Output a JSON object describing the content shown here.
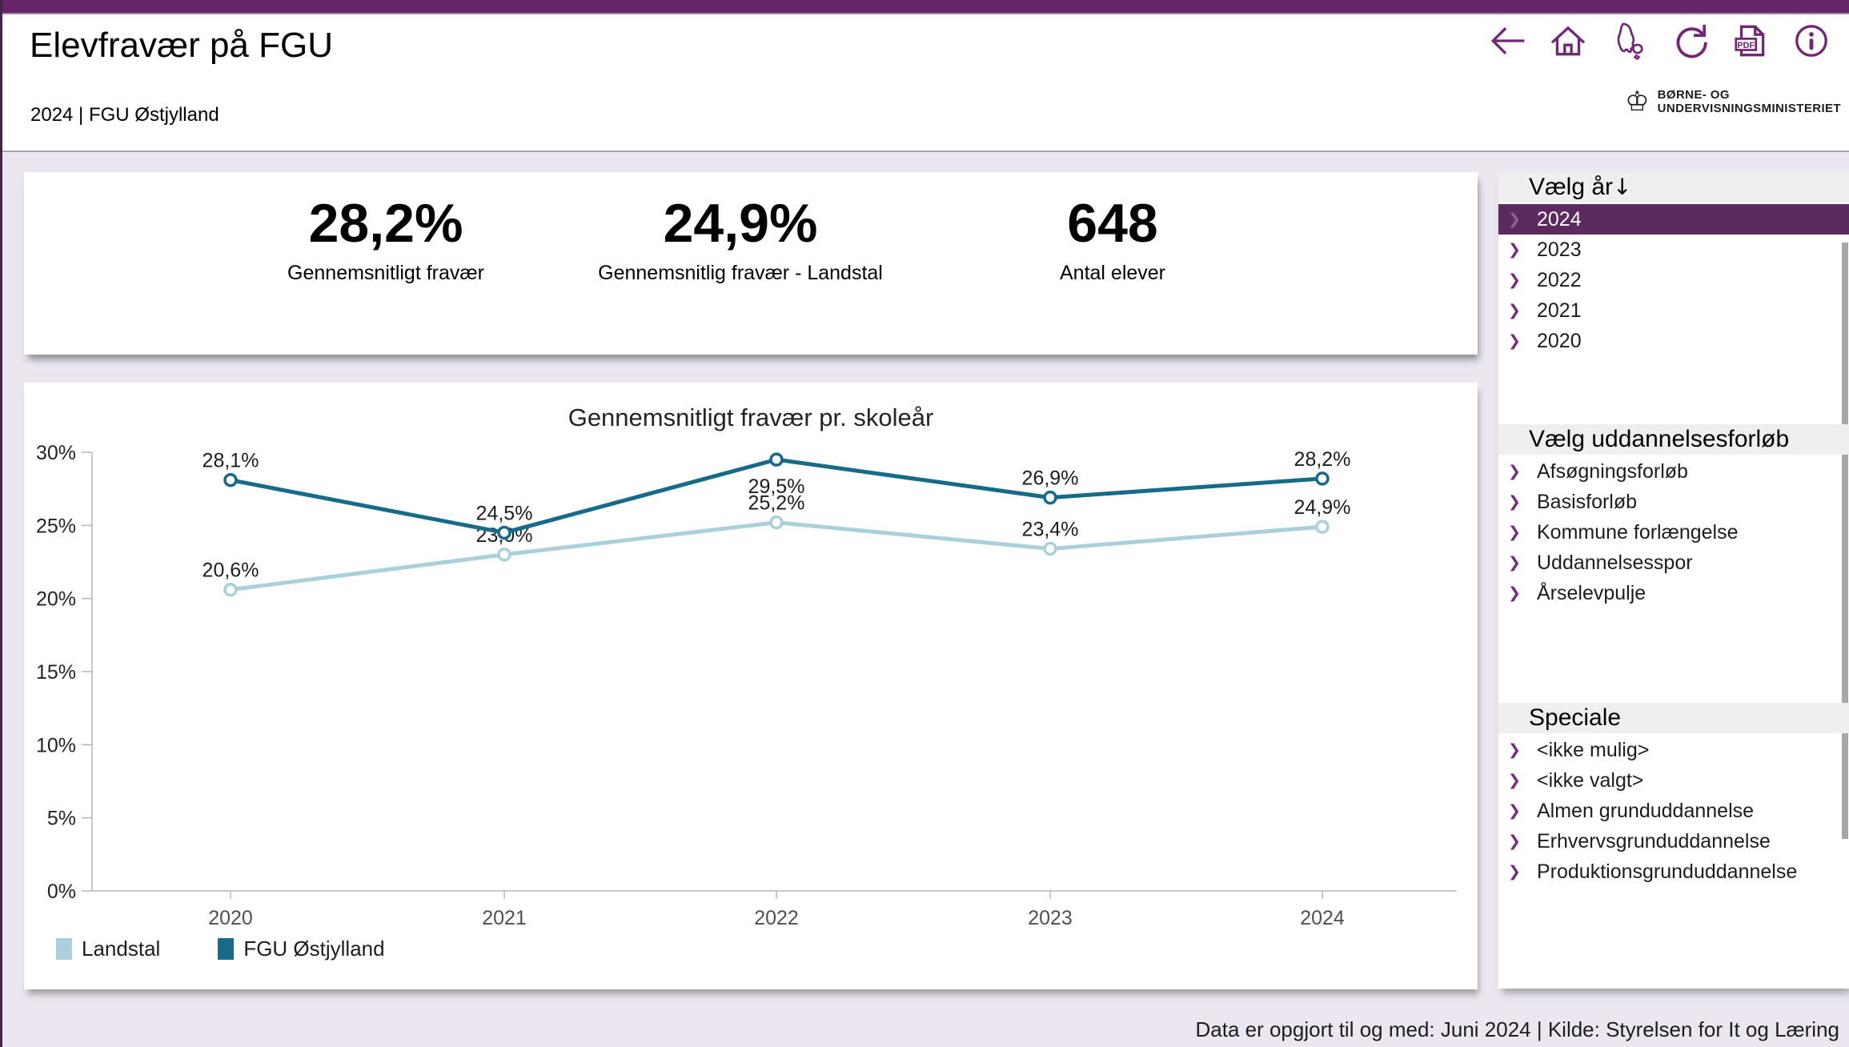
{
  "header": {
    "title": "Elevfravær på FGU",
    "subtitle": "2024 | FGU Østjylland",
    "nav_icons": [
      "back",
      "home",
      "denmark-map",
      "refresh",
      "pdf-export",
      "info"
    ],
    "ministry": {
      "line1": "BØRNE- OG",
      "line2": "UNDERVISNINGSMINISTERIET"
    }
  },
  "kpis": [
    {
      "value": "28,2%",
      "label": "Gennemsnitligt fravær"
    },
    {
      "value": "24,9%",
      "label": "Gennemsnitlig fravær - Landstal"
    },
    {
      "value": "648",
      "label": "Antal elever"
    }
  ],
  "chart_data": {
    "type": "line",
    "title": "Gennemsnitligt fravær pr. skoleår",
    "categories": [
      "2020",
      "2021",
      "2022",
      "2023",
      "2024"
    ],
    "series": [
      {
        "name": "Landstal",
        "color": "#a9d0db",
        "values": [
          20.6,
          23.0,
          25.2,
          23.4,
          24.9
        ],
        "point_labels": [
          "20,6%",
          "23,0%",
          "25,2%",
          "23,4%",
          "24,9%"
        ]
      },
      {
        "name": "FGU Østjylland",
        "color": "#166a8a",
        "values": [
          28.1,
          24.5,
          29.5,
          26.9,
          28.2
        ],
        "point_labels": [
          "28,1%",
          "24,5%",
          "29,5%",
          "26,9%",
          "28,2%"
        ]
      }
    ],
    "ylim": [
      0,
      30
    ],
    "ytick_step": 5,
    "ytick_labels": [
      "0%",
      "5%",
      "10%",
      "15%",
      "20%",
      "25%",
      "30%"
    ],
    "grid": false,
    "legend_position": "bottom-left"
  },
  "sidebar": {
    "sections": [
      {
        "title": "Vælg år",
        "sort_icon": "↓",
        "items": [
          {
            "label": "2024",
            "selected": true
          },
          {
            "label": "2023",
            "selected": false
          },
          {
            "label": "2022",
            "selected": false
          },
          {
            "label": "2021",
            "selected": false
          },
          {
            "label": "2020",
            "selected": false
          }
        ]
      },
      {
        "title": "Vælg uddannelsesforløb",
        "sort_icon": "",
        "items": [
          {
            "label": "Afsøgningsforløb",
            "selected": false
          },
          {
            "label": "Basisforløb",
            "selected": false
          },
          {
            "label": "Kommune forlængelse",
            "selected": false
          },
          {
            "label": "Uddannelsesspor",
            "selected": false
          },
          {
            "label": "Årselevpulje",
            "selected": false
          }
        ]
      },
      {
        "title": "Speciale",
        "sort_icon": "",
        "items": [
          {
            "label": "<ikke mulig>",
            "selected": false
          },
          {
            "label": "<ikke valgt>",
            "selected": false
          },
          {
            "label": "Almen grunduddannelse",
            "selected": false
          },
          {
            "label": "Erhvervsgrunduddannelse",
            "selected": false
          },
          {
            "label": "Produktionsgrunduddannelse",
            "selected": false
          }
        ]
      }
    ]
  },
  "footer": {
    "text": "Data er opgjort til og med: Juni 2024 | Kilde: Styrelsen for It og Læring"
  },
  "colors": {
    "topbar": "#682469",
    "icon_accent": "#732577",
    "selected_item_bg": "#5c2a5e",
    "chevron": "#7c2981",
    "series_landstal": "#a9d0db",
    "series_fgu_oestjylland": "#166a8a",
    "section_header_bg": "#f0eff0",
    "page_background": "#ebe6ef"
  }
}
